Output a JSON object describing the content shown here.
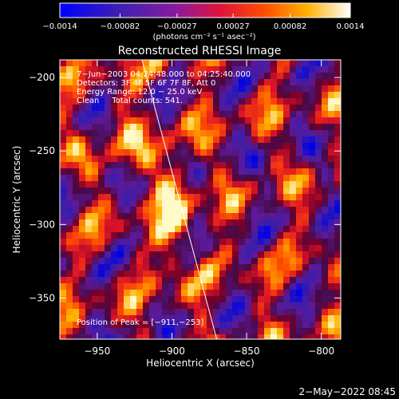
{
  "chart_data": {
    "type": "heatmap",
    "title": "Reconstructed RHESSI Image",
    "xlabel": "Heliocentric X (arcsec)",
    "ylabel": "Heliocentric Y (arcsec)",
    "xlim": [
      -975,
      -787
    ],
    "ylim": [
      -378,
      -188
    ],
    "x_ticks": [
      -950,
      -900,
      -850,
      -800
    ],
    "x_tick_labels": [
      "−950",
      "−900",
      "−850",
      "−800"
    ],
    "y_ticks": [
      -200,
      -250,
      -300,
      -350
    ],
    "y_tick_labels": [
      "−200",
      "−250",
      "−300",
      "−350"
    ],
    "colorbar": {
      "range": [
        -0.0014,
        0.0014
      ],
      "ticks": [
        -0.0014,
        -0.00082,
        -0.00027,
        0.00027,
        0.00082,
        0.0014
      ],
      "tick_labels": [
        "−0.0014",
        "−0.00082",
        "−0.00027",
        "0.00027",
        "0.00082",
        "0.0014"
      ],
      "units_label": "(photons cm⁻² s⁻¹ asec⁻²)"
    },
    "annotations": [
      "7−Jun−2003 04:24:48.000 to 04:25:40.000",
      "Detectors: 3F 4F 5F 6F 7F 8F, Att 0",
      "Energy Range: 12.0 − 25.0 keV",
      "Clean     Total counts: 541."
    ],
    "peak_label": "Position of Peak = [−911,−253]",
    "peak": [
      -911,
      -253
    ],
    "limb_line": [
      [
        -920,
        -188
      ],
      [
        -870,
        -378
      ]
    ],
    "grid": false,
    "legend": "none"
  },
  "footer": {
    "timestamp": "2−May−2022 08:45"
  },
  "colors": {
    "background": "#000000",
    "text": "#ffffff",
    "colorbar_low": "#0000ff",
    "colorbar_high": "#ffffff"
  }
}
